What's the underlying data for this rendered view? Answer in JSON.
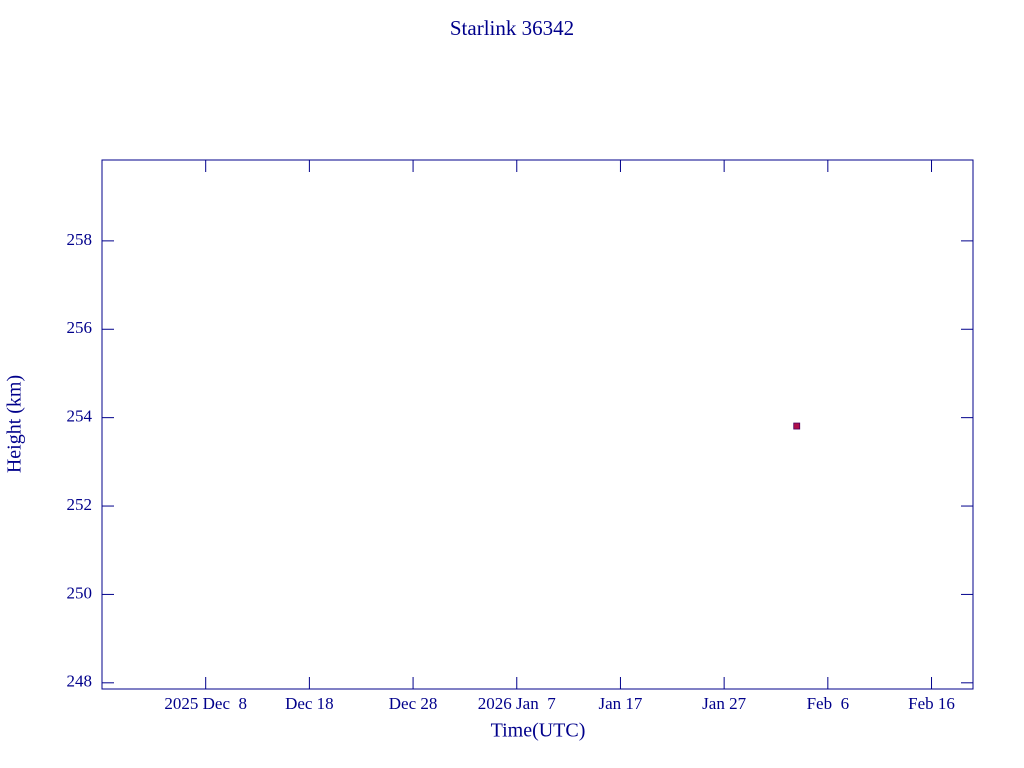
{
  "chart_data": {
    "type": "scatter",
    "title": "Starlink 36342",
    "x_label": "Time(UTC)",
    "y_label": "Height (km)",
    "x": [
      "2026-02-03"
    ],
    "series": [
      {
        "name": "Height",
        "color": "#b0104a",
        "values": [
          253.81
        ]
      }
    ],
    "xlim": [
      "2025-11-28",
      "2026-02-20"
    ],
    "xticks": [
      {
        "value": "2025-12-08",
        "label": "2025 Dec  8"
      },
      {
        "value": "2025-12-18",
        "label": "Dec 18"
      },
      {
        "value": "2025-12-28",
        "label": "Dec 28"
      },
      {
        "value": "2026-01-07",
        "label": "2026 Jan  7"
      },
      {
        "value": "2026-01-17",
        "label": "Jan 17"
      },
      {
        "value": "2026-01-27",
        "label": "Jan 27"
      },
      {
        "value": "2026-02-06",
        "label": "Feb  6"
      },
      {
        "value": "2026-02-16",
        "label": "Feb 16"
      }
    ],
    "ylim": [
      247.86,
      259.83
    ],
    "yticks": [
      248,
      250,
      252,
      254,
      256,
      258
    ],
    "grid": false
  }
}
